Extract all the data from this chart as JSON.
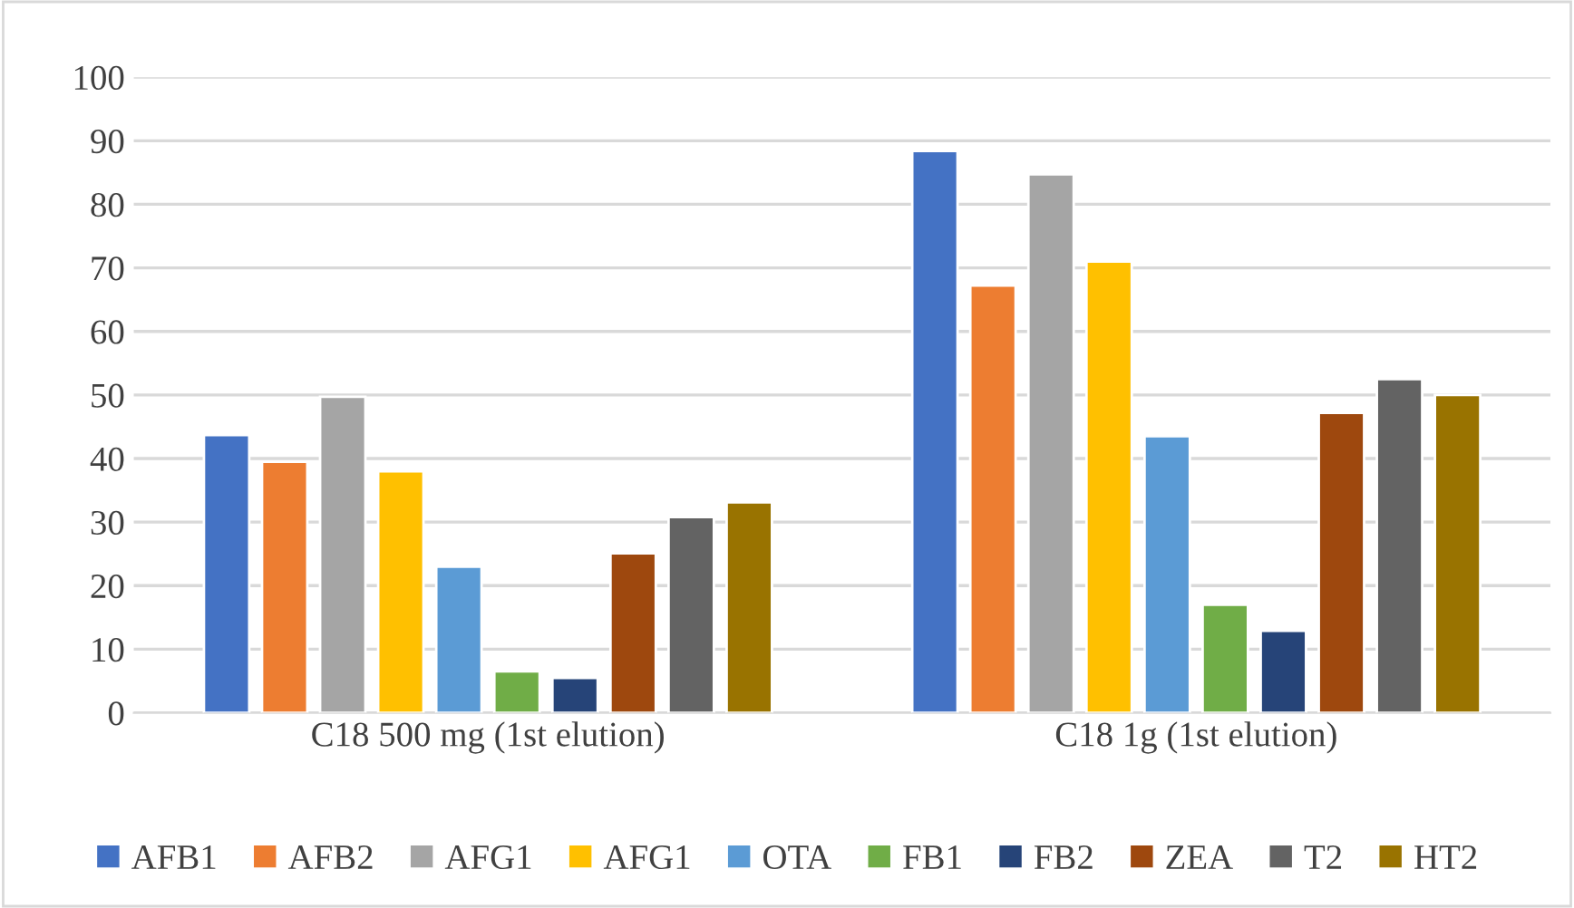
{
  "chart_data": {
    "type": "bar",
    "categories": [
      "C18 500 mg (1st elution)",
      "C18 1g (1st elution)"
    ],
    "series": [
      {
        "name": "AFB1",
        "color": "#4472c4",
        "values": [
          43.7,
          88.4
        ]
      },
      {
        "name": "AFB2",
        "color": "#ed7d31",
        "values": [
          39.5,
          67.2
        ]
      },
      {
        "name": "AFG1",
        "color": "#a5a5a5",
        "values": [
          49.7,
          84.7
        ]
      },
      {
        "name": "AFG1",
        "color": "#ffc000",
        "values": [
          38.0,
          71.0
        ]
      },
      {
        "name": "OTA",
        "color": "#5b9bd5",
        "values": [
          23.0,
          43.5
        ]
      },
      {
        "name": "FB1",
        "color": "#70ad47",
        "values": [
          6.5,
          17.0
        ]
      },
      {
        "name": "FB2",
        "color": "#264478",
        "values": [
          5.5,
          12.9
        ]
      },
      {
        "name": "ZEA",
        "color": "#9e480e",
        "values": [
          25.1,
          47.2
        ]
      },
      {
        "name": "T2",
        "color": "#636363",
        "values": [
          30.8,
          52.5
        ]
      },
      {
        "name": "HT2",
        "color": "#997300",
        "values": [
          33.1,
          50.0
        ]
      }
    ],
    "ylim": [
      0,
      100
    ],
    "yticks": [
      0,
      10,
      20,
      30,
      40,
      50,
      60,
      70,
      80,
      90,
      100
    ],
    "grid": "y",
    "legend": "bottom"
  }
}
